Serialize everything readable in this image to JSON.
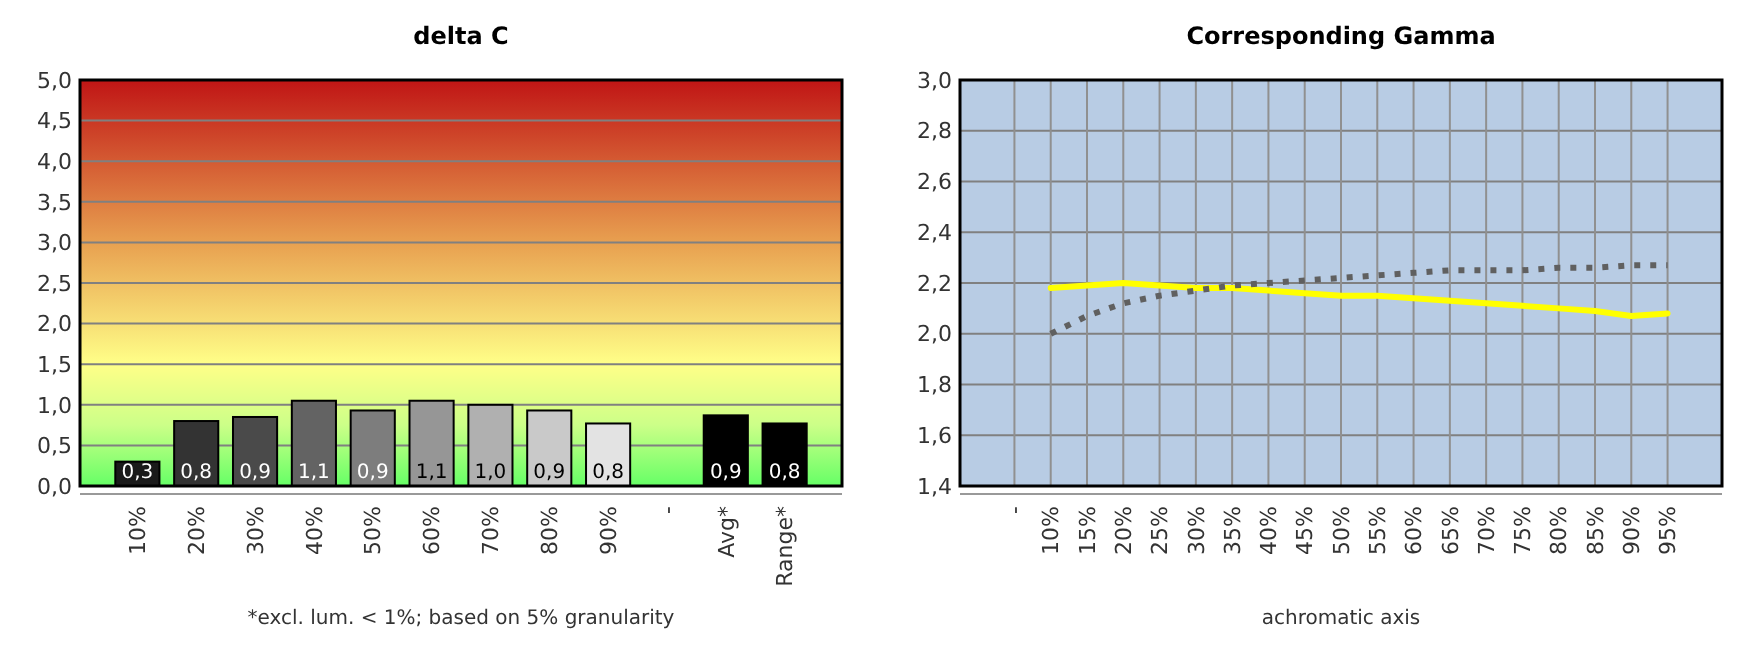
{
  "chart_data": [
    {
      "type": "bar",
      "title": "delta C",
      "categories": [
        "10%",
        "20%",
        "30%",
        "40%",
        "50%",
        "60%",
        "70%",
        "80%",
        "90%",
        "-",
        "Avg*",
        "Range*"
      ],
      "values": [
        0.3,
        0.8,
        0.85,
        1.05,
        0.93,
        1.05,
        1.0,
        0.93,
        0.77,
        null,
        0.87,
        0.77
      ],
      "value_labels": [
        "0,3",
        "0,8",
        "0,9",
        "1,1",
        "0,9",
        "1,1",
        "1,0",
        "0,9",
        "0,8",
        null,
        "0,9",
        "0,8"
      ],
      "colors": [
        "#1a1a1a",
        "#333333",
        "#4a4a4a",
        "#636363",
        "#7d7d7d",
        "#969696",
        "#b0b0b0",
        "#c9c9c9",
        "#e3e3e3",
        null,
        "#000000",
        "#000000"
      ],
      "ylim": [
        0,
        5
      ],
      "yticks": [
        {
          "value": 0,
          "label": "0,0"
        },
        {
          "value": 0.5,
          "label": "0,5"
        },
        {
          "value": 1,
          "label": "1,0"
        },
        {
          "value": 1.5,
          "label": "1,5"
        },
        {
          "value": 2,
          "label": "2,0"
        },
        {
          "value": 2.5,
          "label": "2,5"
        },
        {
          "value": 3,
          "label": "3,0"
        },
        {
          "value": 3.5,
          "label": "3,5"
        },
        {
          "value": 4,
          "label": "4,0"
        },
        {
          "value": 4.5,
          "label": "4,5"
        },
        {
          "value": 5,
          "label": "5,0"
        }
      ],
      "grid": "y",
      "annotations": [
        "*excl. lum. < 1%; based on 5% granularity"
      ]
    },
    {
      "type": "line",
      "title": "Corresponding Gamma",
      "xlabel": "achromatic axis",
      "categories": [
        "-",
        "10%",
        "15%",
        "20%",
        "25%",
        "30%",
        "35%",
        "40%",
        "45%",
        "50%",
        "55%",
        "60%",
        "65%",
        "70%",
        "75%",
        "80%",
        "85%",
        "90%",
        "95%"
      ],
      "series": [
        {
          "color": "#ffff00",
          "line_style": "solid",
          "values": [
            null,
            2.18,
            2.19,
            2.2,
            2.19,
            2.18,
            2.18,
            2.17,
            2.16,
            2.15,
            2.15,
            2.14,
            2.13,
            2.12,
            2.11,
            2.1,
            2.09,
            2.07,
            2.08
          ]
        },
        {
          "color": "#606060",
          "line_style": "dotted",
          "values": [
            null,
            2.0,
            2.07,
            2.12,
            2.15,
            2.17,
            2.19,
            2.2,
            2.21,
            2.22,
            2.23,
            2.24,
            2.25,
            2.25,
            2.25,
            2.26,
            2.26,
            2.27,
            2.27
          ]
        }
      ],
      "ylim": [
        1.4,
        3.0
      ],
      "yticks": [
        {
          "value": 1.4,
          "label": "1,4"
        },
        {
          "value": 1.6,
          "label": "1,6"
        },
        {
          "value": 1.8,
          "label": "1,8"
        },
        {
          "value": 2.0,
          "label": "2,0"
        },
        {
          "value": 2.2,
          "label": "2,2"
        },
        {
          "value": 2.4,
          "label": "2,4"
        },
        {
          "value": 2.6,
          "label": "2,6"
        },
        {
          "value": 2.8,
          "label": "2,8"
        },
        {
          "value": 3.0,
          "label": "3,0"
        }
      ],
      "grid": true,
      "marker": "none"
    }
  ]
}
